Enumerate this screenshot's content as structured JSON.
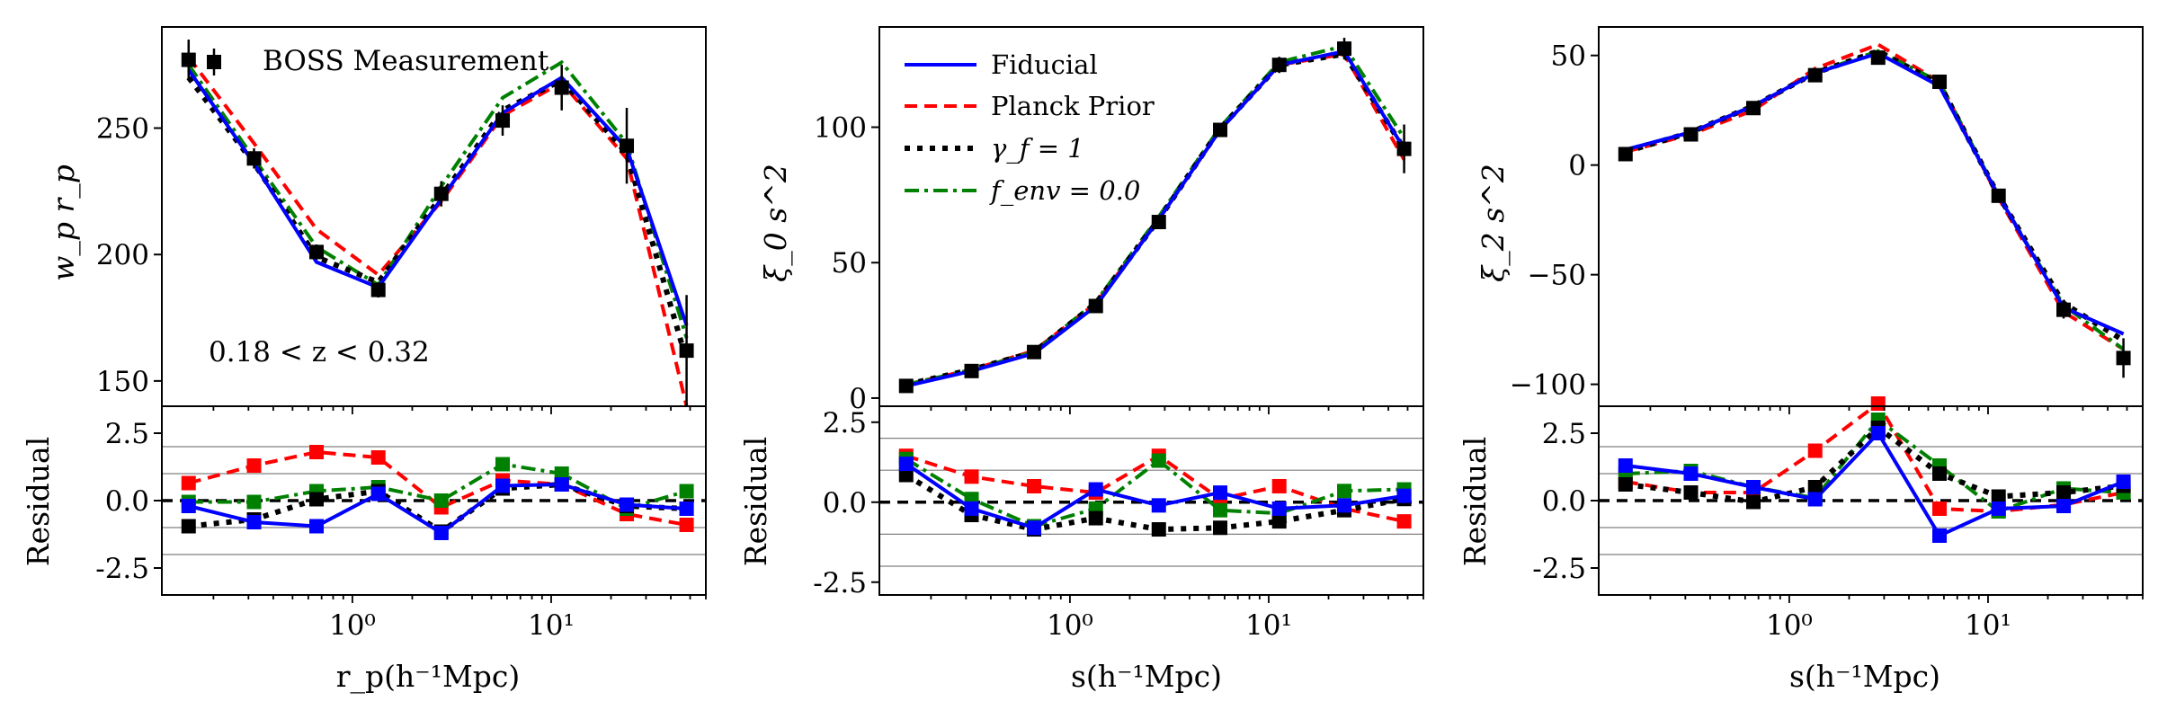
{
  "colors": {
    "fiducial": "#0000ff",
    "planck": "#ff0000",
    "gamma": "#000000",
    "fenv": "#008000",
    "data": "#000000"
  },
  "x_label_left": "r_p(h⁻¹Mpc)",
  "x_label_mid": "s(h⁻¹Mpc)",
  "x_label_right": "s(h⁻¹Mpc)",
  "x_ticks": [
    "10⁰",
    "10¹"
  ],
  "residual_label": "Residual",
  "chart_data": [
    {
      "type": "line",
      "panel": "wp",
      "ylabel": "w_p r_p",
      "xscale": "log",
      "xlim": [
        0.11,
        60
      ],
      "ylim": [
        140,
        290
      ],
      "yticks": [
        "250",
        "200",
        "150"
      ],
      "ytick_values": [
        250,
        200,
        150
      ],
      "legend_title": "BOSS Measurement",
      "annotation": "0.18 < z < 0.32",
      "x": [
        0.15,
        0.32,
        0.66,
        1.35,
        2.8,
        5.7,
        11.3,
        24,
        48
      ],
      "data": {
        "y": [
          277,
          238,
          201,
          186,
          224,
          253,
          266,
          243,
          162
        ],
        "err": [
          8,
          4,
          3,
          3,
          5,
          6,
          9,
          15,
          22
        ]
      },
      "series": [
        {
          "name": "Fiducial",
          "values": [
            273,
            236,
            197,
            187,
            222,
            256,
            270,
            242,
            172
          ]
        },
        {
          "name": "Planck Prior",
          "values": [
            278,
            244,
            210,
            192,
            221,
            255,
            268,
            238,
            140
          ]
        },
        {
          "name": "γ_f = 1",
          "values": [
            270,
            236,
            199,
            189,
            223,
            257,
            269,
            240,
            158
          ]
        },
        {
          "name": "f_env = 0.0",
          "values": [
            275,
            238,
            203,
            188,
            227,
            262,
            276,
            244,
            167
          ]
        }
      ],
      "residual": {
        "ylim": [
          -3.5,
          3.5
        ],
        "yticks": [
          "2.5",
          "0.0",
          "-2.5"
        ],
        "ytick_values": [
          2.5,
          0,
          -2.5
        ],
        "series": [
          {
            "name": "Fiducial",
            "values": [
              -0.2,
              -0.8,
              -0.95,
              0.25,
              -1.2,
              0.55,
              0.6,
              -0.15,
              -0.3
            ]
          },
          {
            "name": "Planck Prior",
            "values": [
              0.65,
              1.3,
              1.8,
              1.6,
              -0.25,
              0.75,
              0.6,
              -0.5,
              -0.9
            ]
          },
          {
            "name": "γ_f = 1",
            "values": [
              -0.95,
              -0.7,
              0.05,
              0.35,
              -1.15,
              0.45,
              0.6,
              -0.2,
              -0.3
            ]
          },
          {
            "name": "f_env = 0.0",
            "values": [
              -0.05,
              -0.05,
              0.35,
              0.5,
              0.0,
              1.35,
              1.0,
              -0.3,
              0.35
            ]
          }
        ]
      }
    },
    {
      "type": "line",
      "panel": "xi0",
      "ylabel": "ξ_0 s^2",
      "xscale": "log",
      "xlim": [
        0.11,
        60
      ],
      "ylim": [
        -3,
        137
      ],
      "yticks": [
        "100",
        "50",
        "0"
      ],
      "ytick_values": [
        100,
        50,
        0
      ],
      "legend": [
        "Fiducial",
        "Planck Prior",
        "γ_f = 1",
        "f_env = 0.0"
      ],
      "x": [
        0.15,
        0.32,
        0.66,
        1.35,
        2.8,
        5.7,
        11.3,
        24,
        48
      ],
      "data": {
        "y": [
          4.5,
          10,
          17,
          34,
          65,
          99,
          123,
          129,
          92
        ],
        "err": [
          1,
          1,
          1,
          1.5,
          2,
          2.5,
          3,
          4,
          9
        ]
      },
      "series": [
        {
          "name": "Fiducial",
          "values": [
            4.5,
            10,
            16.5,
            34,
            66,
            99,
            123,
            128,
            92
          ]
        },
        {
          "name": "Planck Prior",
          "values": [
            5,
            10.5,
            17.5,
            35,
            66,
            99,
            123,
            127,
            88
          ]
        },
        {
          "name": "γ_f = 1",
          "values": [
            5,
            10.5,
            17,
            35,
            66,
            99.5,
            123,
            127,
            92
          ]
        },
        {
          "name": "f_env = 0.0",
          "values": [
            5,
            10.5,
            17,
            35.5,
            67,
            100,
            124,
            130,
            96
          ]
        }
      ],
      "residual": {
        "ylim": [
          -2.9,
          3.0
        ],
        "yticks": [
          "2.5",
          "0.0",
          "-2.5"
        ],
        "ytick_values": [
          2.5,
          0,
          -2.5
        ],
        "series": [
          {
            "name": "Fiducial",
            "values": [
              1.2,
              -0.2,
              -0.8,
              0.4,
              -0.1,
              0.3,
              -0.2,
              -0.1,
              0.2
            ]
          },
          {
            "name": "Planck Prior",
            "values": [
              1.45,
              0.8,
              0.5,
              0.3,
              1.45,
              0.1,
              0.5,
              -0.2,
              -0.6
            ]
          },
          {
            "name": "γ_f = 1",
            "values": [
              0.85,
              -0.4,
              -0.85,
              -0.5,
              -0.85,
              -0.8,
              -0.6,
              -0.25,
              0.1
            ]
          },
          {
            "name": "f_env = 0.0",
            "values": [
              1.35,
              0.1,
              -0.75,
              -0.2,
              1.3,
              -0.25,
              -0.35,
              0.35,
              0.4
            ]
          }
        ]
      }
    },
    {
      "type": "line",
      "panel": "xi2",
      "ylabel": "ξ_2 s^2",
      "xscale": "log",
      "xlim": [
        0.11,
        60
      ],
      "ylim": [
        -110,
        63
      ],
      "yticks": [
        "50",
        "0",
        "−50",
        "−100"
      ],
      "ytick_values": [
        50,
        0,
        -50,
        -100
      ],
      "x": [
        0.15,
        0.32,
        0.66,
        1.35,
        2.8,
        5.7,
        11.3,
        24,
        48
      ],
      "data": {
        "y": [
          5,
          14,
          26,
          41,
          49,
          38,
          -14,
          -66,
          -88
        ],
        "err": [
          1,
          1,
          1.5,
          2,
          2.5,
          3,
          3,
          4,
          9
        ]
      },
      "series": [
        {
          "name": "Fiducial",
          "values": [
            7,
            15,
            27,
            42,
            51,
            36,
            -14,
            -65,
            -77
          ]
        },
        {
          "name": "Planck Prior",
          "values": [
            6,
            14,
            25,
            44,
            55,
            38,
            -15,
            -67,
            -84
          ]
        },
        {
          "name": "γ_f = 1",
          "values": [
            6,
            15,
            27,
            42,
            52,
            37,
            -14,
            -63,
            -80
          ]
        },
        {
          "name": "f_env = 0.0",
          "values": [
            7,
            15,
            27,
            42,
            52,
            38,
            -14,
            -64,
            -84
          ]
        }
      ],
      "residual": {
        "ylim": [
          -3.5,
          3.5
        ],
        "yticks": [
          "2.5",
          "0.0",
          "-2.5"
        ],
        "ytick_values": [
          2.5,
          0,
          -2.5
        ],
        "series": [
          {
            "name": "Fiducial",
            "values": [
              1.3,
              1.0,
              0.5,
              0.05,
              2.5,
              -1.3,
              -0.3,
              -0.2,
              0.7
            ]
          },
          {
            "name": "Planck Prior",
            "values": [
              0.7,
              0.3,
              0.3,
              1.85,
              3.6,
              -0.3,
              -0.4,
              -0.15,
              0.3
            ]
          },
          {
            "name": "γ_f = 1",
            "values": [
              0.6,
              0.3,
              -0.05,
              0.5,
              2.7,
              1.0,
              0.15,
              0.3,
              0.55
            ]
          },
          {
            "name": "f_env = 0.0",
            "values": [
              1.0,
              1.1,
              0.5,
              0.1,
              3.0,
              1.3,
              -0.4,
              0.45,
              0.3
            ]
          }
        ]
      }
    }
  ]
}
